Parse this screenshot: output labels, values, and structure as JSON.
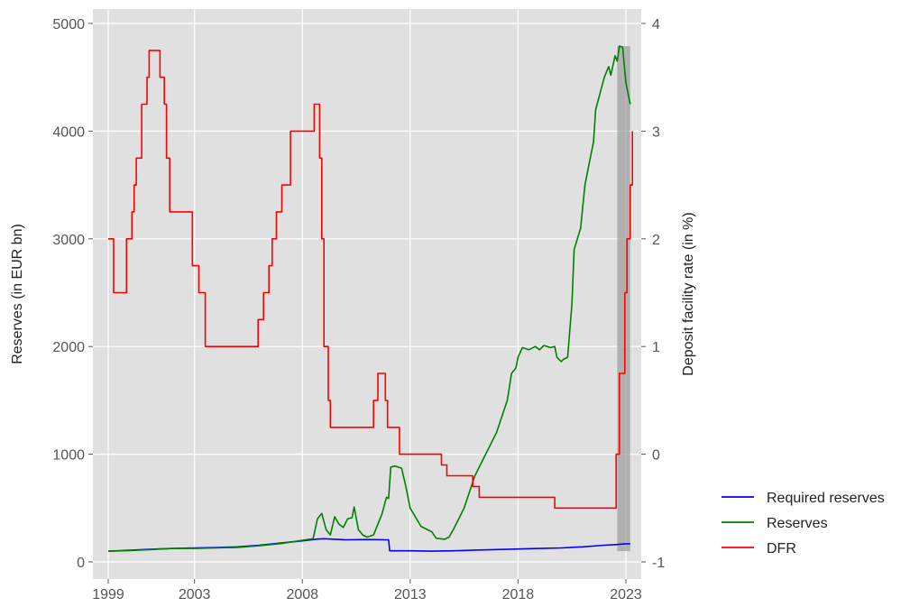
{
  "chart_data": {
    "type": "line",
    "title": "",
    "xlabel": "",
    "ylabel": "Reserves (in EUR bn)",
    "ylabel_right": "Deposit facility rate (in %)",
    "xlim": [
      1998.85,
      2023.6
    ],
    "ylim": [
      -60,
      5020
    ],
    "ylim_right": [
      -1.0,
      4.0
    ],
    "x_ticks": [
      1999,
      2003,
      2008,
      2013,
      2018,
      2023
    ],
    "x_tick_labels": [
      "1999",
      "2003",
      "2008",
      "2013",
      "2018",
      "2023"
    ],
    "y_ticks": [
      0,
      1000,
      2000,
      3000,
      4000,
      5000
    ],
    "y_tick_labels": [
      "0",
      "1000",
      "2000",
      "3000",
      "4000",
      "5000"
    ],
    "y_ticks_right": [
      -1,
      0,
      1,
      2,
      3,
      4
    ],
    "y_tick_labels_right": [
      "-1",
      "0",
      "1",
      "2",
      "3",
      "4"
    ],
    "grid": true,
    "legend_position": "outside-right-bottom",
    "colors": {
      "panel_background": "#e0e0e0",
      "grid": "#ffffff",
      "required_reserves": "#0000ff",
      "reserves": "#008000",
      "dfr": "#ff0000",
      "shade": "#a0a0a0"
    },
    "shaded_region": {
      "x": [
        2022.6,
        2023.2
      ],
      "y": [
        100,
        4790
      ]
    },
    "series": [
      {
        "name": "Required reserves",
        "axis": "left",
        "color": "#0000ff",
        "points": [
          [
            1999.0,
            100
          ],
          [
            2000.0,
            108
          ],
          [
            2001.0,
            118
          ],
          [
            2002.0,
            125
          ],
          [
            2003.0,
            130
          ],
          [
            2004.0,
            133
          ],
          [
            2005.0,
            140
          ],
          [
            2006.0,
            155
          ],
          [
            2007.0,
            175
          ],
          [
            2008.0,
            195
          ],
          [
            2008.7,
            212
          ],
          [
            2009.0,
            215
          ],
          [
            2010.0,
            205
          ],
          [
            2011.0,
            208
          ],
          [
            2011.9,
            205
          ],
          [
            2012.0,
            204
          ],
          [
            2012.05,
            103
          ],
          [
            2013.0,
            103
          ],
          [
            2014.0,
            100
          ],
          [
            2015.0,
            103
          ],
          [
            2016.0,
            110
          ],
          [
            2017.0,
            115
          ],
          [
            2018.0,
            120
          ],
          [
            2019.0,
            125
          ],
          [
            2020.0,
            130
          ],
          [
            2021.0,
            140
          ],
          [
            2022.0,
            155
          ],
          [
            2022.6,
            162
          ],
          [
            2023.0,
            168
          ],
          [
            2023.2,
            168
          ]
        ]
      },
      {
        "name": "Reserves",
        "axis": "left",
        "color": "#008000",
        "points": [
          [
            1999.0,
            100
          ],
          [
            2000.0,
            105
          ],
          [
            2001.0,
            115
          ],
          [
            2002.0,
            125
          ],
          [
            2003.0,
            125
          ],
          [
            2004.0,
            130
          ],
          [
            2005.0,
            135
          ],
          [
            2006.0,
            150
          ],
          [
            2007.0,
            170
          ],
          [
            2008.0,
            200
          ],
          [
            2008.5,
            215
          ],
          [
            2008.7,
            400
          ],
          [
            2008.9,
            450
          ],
          [
            2009.1,
            300
          ],
          [
            2009.3,
            250
          ],
          [
            2009.5,
            420
          ],
          [
            2009.7,
            350
          ],
          [
            2009.9,
            320
          ],
          [
            2010.1,
            400
          ],
          [
            2010.3,
            410
          ],
          [
            2010.4,
            510
          ],
          [
            2010.6,
            300
          ],
          [
            2010.8,
            250
          ],
          [
            2011.0,
            230
          ],
          [
            2011.3,
            250
          ],
          [
            2011.5,
            350
          ],
          [
            2011.7,
            450
          ],
          [
            2011.9,
            600
          ],
          [
            2012.0,
            590
          ],
          [
            2012.1,
            880
          ],
          [
            2012.3,
            890
          ],
          [
            2012.6,
            870
          ],
          [
            2012.8,
            700
          ],
          [
            2013.0,
            500
          ],
          [
            2013.5,
            330
          ],
          [
            2014.0,
            280
          ],
          [
            2014.2,
            220
          ],
          [
            2014.6,
            210
          ],
          [
            2014.8,
            230
          ],
          [
            2015.0,
            300
          ],
          [
            2015.5,
            500
          ],
          [
            2016.0,
            800
          ],
          [
            2016.5,
            1000
          ],
          [
            2017.0,
            1200
          ],
          [
            2017.5,
            1500
          ],
          [
            2017.7,
            1750
          ],
          [
            2017.9,
            1800
          ],
          [
            2018.0,
            1900
          ],
          [
            2018.2,
            1990
          ],
          [
            2018.5,
            1970
          ],
          [
            2018.8,
            2000
          ],
          [
            2019.0,
            1970
          ],
          [
            2019.2,
            2010
          ],
          [
            2019.5,
            1990
          ],
          [
            2019.7,
            2000
          ],
          [
            2019.8,
            1900
          ],
          [
            2020.0,
            1860
          ],
          [
            2020.1,
            1880
          ],
          [
            2020.3,
            1900
          ],
          [
            2020.5,
            2400
          ],
          [
            2020.6,
            2900
          ],
          [
            2020.9,
            3100
          ],
          [
            2021.1,
            3500
          ],
          [
            2021.3,
            3700
          ],
          [
            2021.5,
            3900
          ],
          [
            2021.6,
            4200
          ],
          [
            2021.8,
            4350
          ],
          [
            2022.0,
            4500
          ],
          [
            2022.2,
            4600
          ],
          [
            2022.3,
            4520
          ],
          [
            2022.5,
            4700
          ],
          [
            2022.6,
            4650
          ],
          [
            2022.7,
            4790
          ],
          [
            2022.85,
            4780
          ],
          [
            2023.0,
            4450
          ],
          [
            2023.2,
            4250
          ]
        ]
      },
      {
        "name": "DFR",
        "axis": "right",
        "color": "#ff0000",
        "step": true,
        "points": [
          [
            1999.0,
            2.0
          ],
          [
            1999.25,
            1.5
          ],
          [
            1999.85,
            2.0
          ],
          [
            2000.1,
            2.25
          ],
          [
            2000.2,
            2.5
          ],
          [
            2000.3,
            2.75
          ],
          [
            2000.55,
            3.25
          ],
          [
            2000.8,
            3.5
          ],
          [
            2000.9,
            3.75
          ],
          [
            2001.4,
            3.5
          ],
          [
            2001.6,
            3.25
          ],
          [
            2001.7,
            2.75
          ],
          [
            2001.85,
            2.25
          ],
          [
            2002.9,
            1.75
          ],
          [
            2003.2,
            1.5
          ],
          [
            2003.5,
            1.0
          ],
          [
            2005.95,
            1.25
          ],
          [
            2006.2,
            1.5
          ],
          [
            2006.45,
            1.75
          ],
          [
            2006.6,
            2.0
          ],
          [
            2006.8,
            2.25
          ],
          [
            2007.05,
            2.5
          ],
          [
            2007.45,
            3.0
          ],
          [
            2008.55,
            3.25
          ],
          [
            2008.8,
            2.75
          ],
          [
            2008.9,
            2.0
          ],
          [
            2009.0,
            1.0
          ],
          [
            2009.2,
            0.5
          ],
          [
            2009.3,
            0.25
          ],
          [
            2011.3,
            0.5
          ],
          [
            2011.5,
            0.75
          ],
          [
            2011.85,
            0.5
          ],
          [
            2011.95,
            0.25
          ],
          [
            2012.5,
            0.0
          ],
          [
            2014.45,
            -0.1
          ],
          [
            2014.7,
            -0.2
          ],
          [
            2015.9,
            -0.3
          ],
          [
            2016.2,
            -0.4
          ],
          [
            2019.7,
            -0.5
          ],
          [
            2022.55,
            0.0
          ],
          [
            2022.7,
            0.75
          ],
          [
            2022.95,
            1.5
          ],
          [
            2023.05,
            2.0
          ],
          [
            2023.2,
            2.5
          ],
          [
            2023.3,
            3.0
          ]
        ]
      }
    ]
  }
}
